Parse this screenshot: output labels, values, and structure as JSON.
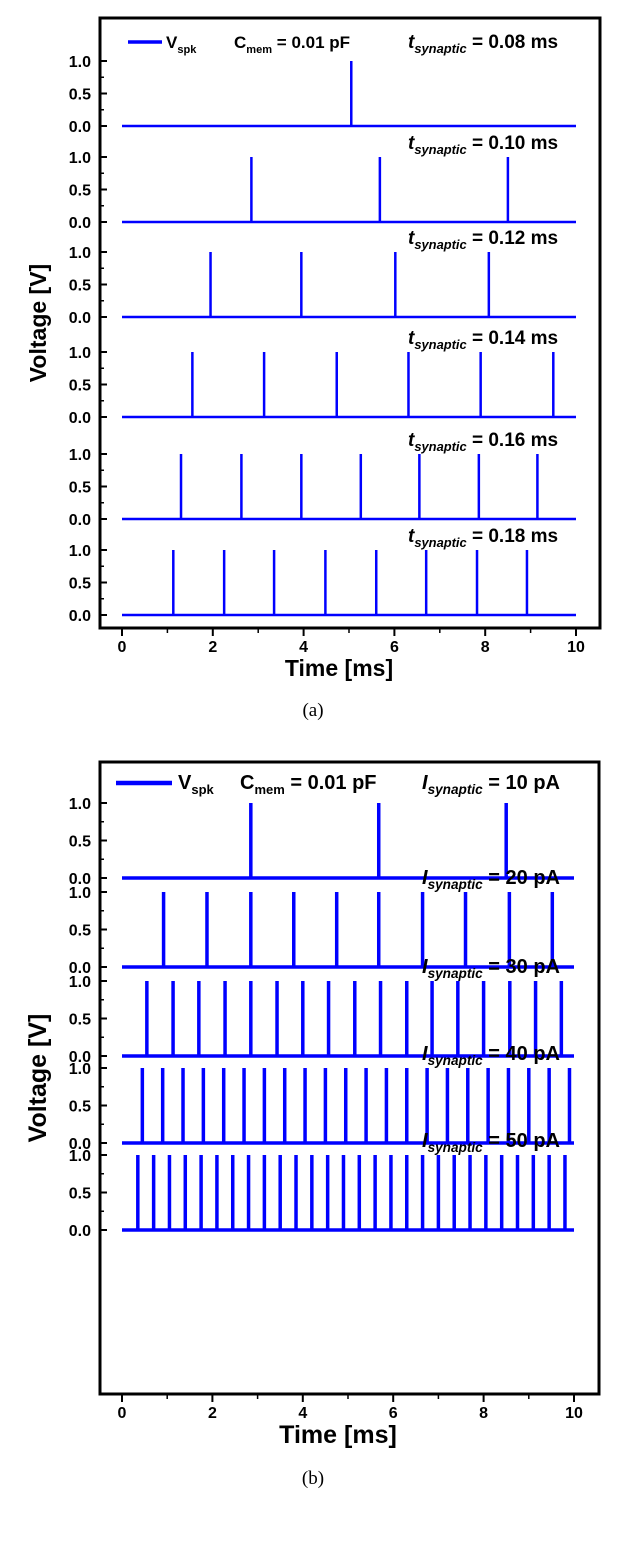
{
  "chart_data": [
    {
      "type": "line",
      "panel_label": "(a)",
      "xlabel": "Time [ms]",
      "ylabel": "Voltage [V]",
      "xlim": [
        0,
        10
      ],
      "xticks": [
        "0",
        "2",
        "4",
        "6",
        "8",
        "10"
      ],
      "yticks": [
        "0.0",
        "0.5",
        "1.0"
      ],
      "ylim_per_trace": [
        0,
        1
      ],
      "line_color": "#0000ff",
      "legend": {
        "series_name": "V",
        "series_sub": "spk",
        "cmem_label": "C",
        "cmem_sub": "mem",
        "cmem_value": " = 0.01 pF",
        "placement": "top-left"
      },
      "traces": [
        {
          "param_name": "t",
          "param_sub": "synaptic",
          "param_value": " = 0.08 ms",
          "spike_times": [
            5.05
          ]
        },
        {
          "param_name": "t",
          "param_sub": "synaptic",
          "param_value": " = 0.10 ms",
          "spike_times": [
            2.85,
            5.68,
            8.5
          ]
        },
        {
          "param_name": "t",
          "param_sub": "synaptic",
          "param_value": " = 0.12 ms",
          "spike_times": [
            1.95,
            3.95,
            6.02,
            8.08
          ]
        },
        {
          "param_name": "t",
          "param_sub": "synaptic",
          "param_value": " = 0.14 ms",
          "spike_times": [
            1.55,
            3.13,
            4.73,
            6.31,
            7.9,
            9.5
          ]
        },
        {
          "param_name": "t",
          "param_sub": "synaptic",
          "param_value": " = 0.16 ms",
          "spike_times": [
            1.3,
            2.63,
            3.95,
            5.26,
            6.55,
            7.86,
            9.15
          ]
        },
        {
          "param_name": "t",
          "param_sub": "synaptic",
          "param_value": " = 0.18 ms",
          "spike_times": [
            1.13,
            2.25,
            3.35,
            4.48,
            5.6,
            6.7,
            7.82,
            8.92
          ]
        }
      ]
    },
    {
      "type": "line",
      "panel_label": "(b)",
      "xlabel": "Time [ms]",
      "ylabel": "Voltage [V]",
      "xlim": [
        0,
        10
      ],
      "xticks": [
        "0",
        "2",
        "4",
        "6",
        "8",
        "10"
      ],
      "yticks": [
        "0.0",
        "0.5",
        "1.0"
      ],
      "ylim_per_trace": [
        0,
        1
      ],
      "line_color": "#0000ff",
      "legend": {
        "series_name": "V",
        "series_sub": "spk",
        "cmem_label": "C",
        "cmem_sub": "mem",
        "cmem_value": " = 0.01 pF",
        "placement": "top-left"
      },
      "traces": [
        {
          "param_name": "I",
          "param_sub": "synaptic",
          "param_value": " = 10 pA",
          "spike_times": [
            2.85,
            5.68,
            8.5
          ]
        },
        {
          "param_name": "I",
          "param_sub": "synaptic",
          "param_value": " = 20 pA",
          "spike_times": [
            0.92,
            1.88,
            2.85,
            3.8,
            4.75,
            5.68,
            6.65,
            7.6,
            8.57,
            9.52
          ]
        },
        {
          "param_name": "I",
          "param_sub": "synaptic",
          "param_value": " = 30 pA",
          "spike_times": [
            0.55,
            1.13,
            1.7,
            2.28,
            2.85,
            3.43,
            4.0,
            4.57,
            5.15,
            5.72,
            6.3,
            6.86,
            7.43,
            8.0,
            8.58,
            9.15,
            9.72
          ]
        },
        {
          "param_name": "I",
          "param_sub": "synaptic",
          "param_value": " = 40 pA",
          "spike_times": [
            0.45,
            0.9,
            1.35,
            1.8,
            2.25,
            2.7,
            3.15,
            3.6,
            4.05,
            4.5,
            4.95,
            5.4,
            5.85,
            6.3,
            6.75,
            7.2,
            7.65,
            8.1,
            8.55,
            9.0,
            9.45,
            9.9
          ]
        },
        {
          "param_name": "I",
          "param_sub": "synaptic",
          "param_value": " = 50 pA",
          "spike_times": [
            0.35,
            0.7,
            1.05,
            1.4,
            1.75,
            2.1,
            2.45,
            2.8,
            3.15,
            3.5,
            3.85,
            4.2,
            4.55,
            4.9,
            5.25,
            5.6,
            5.95,
            6.3,
            6.65,
            7.0,
            7.35,
            7.7,
            8.05,
            8.4,
            8.75,
            9.1,
            9.45,
            9.8
          ]
        }
      ]
    }
  ]
}
